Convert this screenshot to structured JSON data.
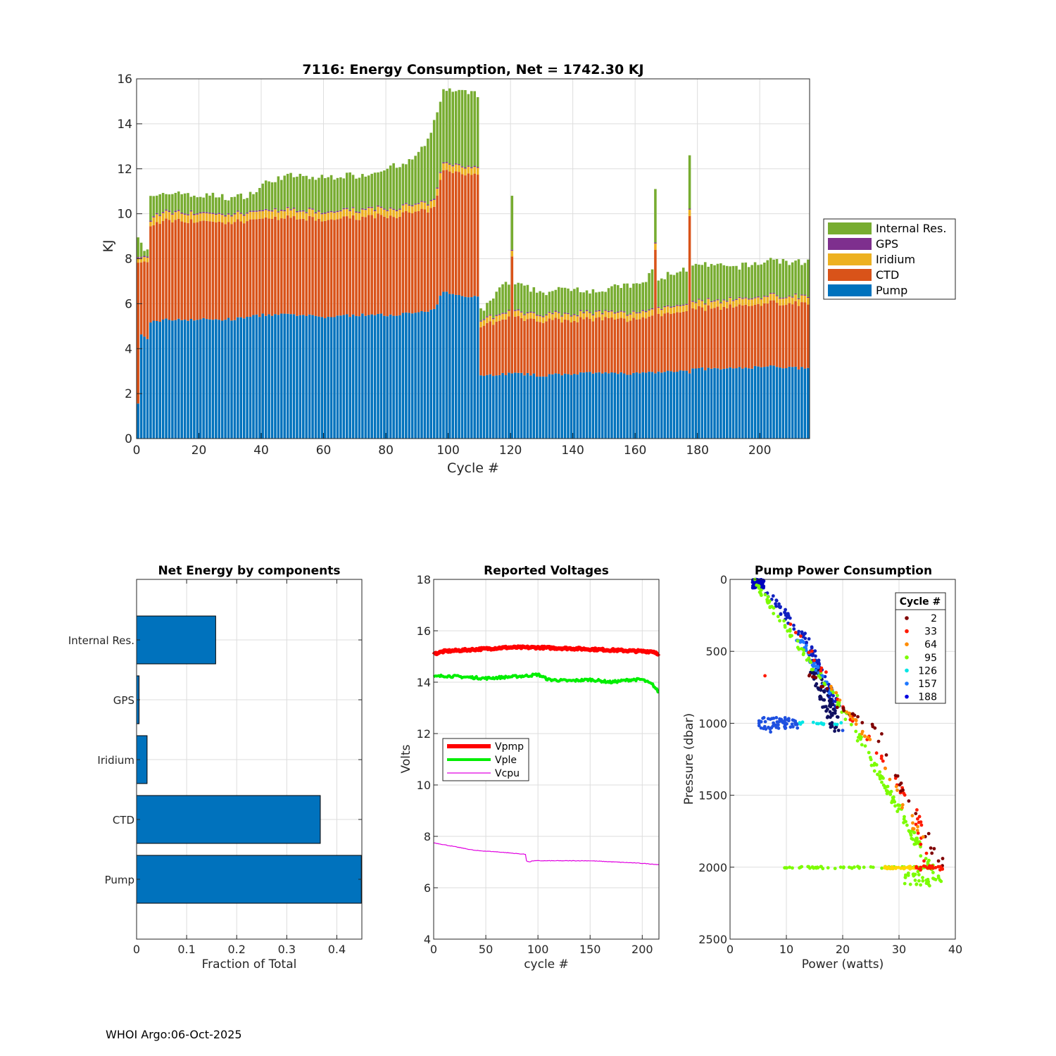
{
  "colors": {
    "pump": "#0072BD",
    "ctd": "#D95319",
    "iridium": "#EDB120",
    "gps": "#7E2F8E",
    "internal": "#77AC30",
    "vpmp": "#FF0000",
    "vple": "#00EE00",
    "vcpu": "#E000E0",
    "grid": "#DDDDDD"
  },
  "footer": "WHOI Argo:06-Oct-2025",
  "chart_data": [
    {
      "id": "energy",
      "type": "bar",
      "stacked": true,
      "title": "7116: Energy Consumption,  Net = 1742.30 KJ",
      "xlabel": "Cycle #",
      "ylabel": "KJ",
      "xlim": [
        0,
        216
      ],
      "ylim": [
        0,
        16
      ],
      "xticks": [
        0,
        20,
        40,
        60,
        80,
        100,
        120,
        140,
        160,
        180,
        200
      ],
      "yticks": [
        0,
        2,
        4,
        6,
        8,
        10,
        12,
        14,
        16
      ],
      "legend": [
        "Internal Res.",
        "GPS",
        "Iridium",
        "CTD",
        "Pump"
      ],
      "legend_position": "outside-right",
      "n_cycles": 216,
      "totals_keypoints": [
        [
          0,
          9.1
        ],
        [
          1,
          8.8
        ],
        [
          2,
          8.4
        ],
        [
          3,
          8.4
        ],
        [
          4,
          10.7
        ],
        [
          8,
          10.8
        ],
        [
          10,
          10.9
        ],
        [
          14,
          11.0
        ],
        [
          16,
          10.8
        ],
        [
          25,
          10.8
        ],
        [
          30,
          10.7
        ],
        [
          34,
          10.8
        ],
        [
          38,
          11.0
        ],
        [
          40,
          11.3
        ],
        [
          45,
          11.6
        ],
        [
          50,
          11.7
        ],
        [
          55,
          11.6
        ],
        [
          60,
          11.6
        ],
        [
          65,
          11.7
        ],
        [
          70,
          11.7
        ],
        [
          75,
          11.8
        ],
        [
          80,
          12.1
        ],
        [
          85,
          12.1
        ],
        [
          90,
          12.7
        ],
        [
          93,
          13.2
        ],
        [
          95,
          14.1
        ],
        [
          97,
          15.1
        ],
        [
          98,
          15.5
        ],
        [
          109,
          15.3
        ],
        [
          110,
          5.7
        ],
        [
          112,
          5.9
        ],
        [
          114,
          6.2
        ],
        [
          116,
          6.8
        ],
        [
          120,
          6.9
        ],
        [
          125,
          6.7
        ],
        [
          130,
          6.5
        ],
        [
          135,
          6.6
        ],
        [
          140,
          6.7
        ],
        [
          145,
          6.6
        ],
        [
          150,
          6.6
        ],
        [
          155,
          6.8
        ],
        [
          160,
          6.8
        ],
        [
          163,
          7.0
        ],
        [
          165,
          7.6
        ],
        [
          167,
          7.0
        ],
        [
          170,
          7.3
        ],
        [
          175,
          7.5
        ],
        [
          180,
          7.7
        ],
        [
          185,
          7.7
        ],
        [
          190,
          7.6
        ],
        [
          195,
          7.7
        ],
        [
          200,
          7.8
        ],
        [
          203,
          8.0
        ],
        [
          210,
          7.8
        ],
        [
          215,
          7.9
        ]
      ],
      "pump_keypoints": [
        [
          0,
          1.5
        ],
        [
          1,
          4.6
        ],
        [
          2,
          4.5
        ],
        [
          3,
          4.4
        ],
        [
          4,
          5.2
        ],
        [
          10,
          5.3
        ],
        [
          20,
          5.3
        ],
        [
          30,
          5.3
        ],
        [
          40,
          5.5
        ],
        [
          50,
          5.5
        ],
        [
          60,
          5.4
        ],
        [
          70,
          5.5
        ],
        [
          80,
          5.5
        ],
        [
          90,
          5.6
        ],
        [
          95,
          5.7
        ],
        [
          97,
          6.3
        ],
        [
          98,
          6.5
        ],
        [
          109,
          6.3
        ],
        [
          110,
          2.8
        ],
        [
          120,
          2.9
        ],
        [
          130,
          2.8
        ],
        [
          140,
          2.9
        ],
        [
          150,
          2.9
        ],
        [
          160,
          2.9
        ],
        [
          170,
          3.0
        ],
        [
          180,
          3.1
        ],
        [
          190,
          3.1
        ],
        [
          200,
          3.2
        ],
        [
          205,
          3.2
        ],
        [
          215,
          3.1
        ]
      ],
      "ctd_keypoints": [
        [
          0,
          6.3
        ],
        [
          1,
          3.2
        ],
        [
          3,
          3.4
        ],
        [
          4,
          4.3
        ],
        [
          10,
          4.4
        ],
        [
          30,
          4.3
        ],
        [
          40,
          4.3
        ],
        [
          60,
          4.3
        ],
        [
          80,
          4.4
        ],
        [
          95,
          4.5
        ],
        [
          98,
          5.4
        ],
        [
          109,
          5.5
        ],
        [
          110,
          2.1
        ],
        [
          112,
          2.3
        ],
        [
          120,
          2.5
        ],
        [
          140,
          2.4
        ],
        [
          160,
          2.4
        ],
        [
          170,
          2.6
        ],
        [
          180,
          2.7
        ],
        [
          200,
          2.8
        ],
        [
          215,
          2.9
        ]
      ],
      "iridium_keypoints": [
        [
          0,
          0.2
        ],
        [
          4,
          0.2
        ],
        [
          5,
          0.35
        ],
        [
          109,
          0.3
        ],
        [
          110,
          0.25
        ],
        [
          215,
          0.3
        ]
      ],
      "gps_keypoints": [
        [
          0,
          0.05
        ],
        [
          215,
          0.04
        ]
      ],
      "pump_overrides": [
        [
          120,
          5.9
        ],
        [
          166,
          5.8
        ],
        [
          177,
          6.3
        ]
      ],
      "spike_totals": [
        [
          120,
          10.8
        ],
        [
          166,
          11.1
        ],
        [
          177,
          12.6
        ]
      ]
    },
    {
      "id": "components",
      "type": "bar",
      "orientation": "horizontal",
      "title": "Net Energy by components",
      "xlabel": "Fraction of Total",
      "ylabel": "",
      "xlim": [
        0,
        0.45
      ],
      "xticks": [
        0,
        0.1,
        0.2,
        0.3,
        0.4
      ],
      "xtick_labels": [
        "0",
        "0.1",
        "0.2",
        "0.3",
        "0.4"
      ],
      "categories": [
        "Internal Res.",
        "GPS",
        "Iridium",
        "CTD",
        "Pump"
      ],
      "values": [
        0.158,
        0.005,
        0.021,
        0.367,
        0.449
      ]
    },
    {
      "id": "voltages",
      "type": "line",
      "title": "Reported Voltages",
      "xlabel": "cycle #",
      "ylabel": "Volts",
      "xlim": [
        0,
        216
      ],
      "ylim": [
        4,
        18
      ],
      "xticks": [
        0,
        50,
        100,
        150,
        200
      ],
      "yticks": [
        4,
        6,
        8,
        10,
        12,
        14,
        16,
        18
      ],
      "legend_position": "middle-left",
      "series": [
        {
          "name": "Vpmp",
          "keypoints": [
            [
              0,
              15.1
            ],
            [
              10,
              15.2
            ],
            [
              30,
              15.25
            ],
            [
              50,
              15.3
            ],
            [
              70,
              15.35
            ],
            [
              100,
              15.35
            ],
            [
              140,
              15.3
            ],
            [
              170,
              15.25
            ],
            [
              200,
              15.2
            ],
            [
              210,
              15.2
            ],
            [
              216,
              15.1
            ]
          ]
        },
        {
          "name": "Vple",
          "keypoints": [
            [
              0,
              14.2
            ],
            [
              10,
              14.25
            ],
            [
              30,
              14.2
            ],
            [
              50,
              14.15
            ],
            [
              70,
              14.2
            ],
            [
              90,
              14.25
            ],
            [
              100,
              14.3
            ],
            [
              110,
              14.1
            ],
            [
              130,
              14.05
            ],
            [
              150,
              14.1
            ],
            [
              170,
              14.0
            ],
            [
              190,
              14.1
            ],
            [
              200,
              14.1
            ],
            [
              205,
              14.0
            ],
            [
              210,
              13.9
            ],
            [
              216,
              13.6
            ]
          ]
        },
        {
          "name": "Vcpu",
          "keypoints": [
            [
              0,
              7.75
            ],
            [
              20,
              7.6
            ],
            [
              40,
              7.45
            ],
            [
              60,
              7.4
            ],
            [
              88,
              7.3
            ],
            [
              89,
              7.05
            ],
            [
              92,
              7.0
            ],
            [
              95,
              7.05
            ],
            [
              150,
              7.05
            ],
            [
              200,
              6.95
            ],
            [
              216,
              6.9
            ]
          ]
        }
      ]
    },
    {
      "id": "pump_power",
      "type": "scatter",
      "title": "Pump Power Consumption",
      "xlabel": "Power (watts)",
      "ylabel": "Pressure (dbar)",
      "xlim": [
        0,
        40
      ],
      "ylim": [
        0,
        2500
      ],
      "y_reversed": true,
      "xticks": [
        0,
        10,
        20,
        30,
        40
      ],
      "yticks": [
        0,
        500,
        1000,
        1500,
        2000,
        2500
      ],
      "legend_title": "Cycle #",
      "legend_position": "top-right",
      "legend": [
        {
          "label": "2",
          "color": "#800000"
        },
        {
          "label": "33",
          "color": "#FF1A00"
        },
        {
          "label": "64",
          "color": "#FF8C00"
        },
        {
          "label": "95",
          "color": "#7CFC00"
        },
        {
          "label": "126",
          "color": "#00E5E5"
        },
        {
          "label": "157",
          "color": "#1E78FF"
        },
        {
          "label": "188",
          "color": "#0000E0"
        }
      ],
      "clusters": [
        {
          "color": "#0000C0",
          "n": 90,
          "x": [
            4,
            6
          ],
          "y": [
            0,
            60
          ]
        },
        {
          "color": "#1020C0",
          "n": 110,
          "line": [
            [
              6,
              60
            ],
            [
              14,
              450
            ],
            [
              19,
              900
            ]
          ],
          "spread": 0.7
        },
        {
          "color": "#101060",
          "n": 70,
          "line": [
            [
              15,
              620
            ],
            [
              19,
              1050
            ]
          ],
          "spread": 1.0
        },
        {
          "color": "#1E78FF",
          "n": 40,
          "line": [
            [
              12,
              400
            ],
            [
              18,
              800
            ]
          ],
          "spread": 0.6
        },
        {
          "color": "#7CFC00",
          "n": 160,
          "line": [
            [
              4,
              0
            ],
            [
              20,
              900
            ],
            [
              30,
              1600
            ],
            [
              37,
              2100
            ]
          ],
          "spread": 0.5
        },
        {
          "color": "#FF1A00",
          "n": 40,
          "line": [
            [
              8,
              120
            ],
            [
              21,
              920
            ],
            [
              33,
              1600
            ],
            [
              35,
              2000
            ]
          ],
          "spread": 0.5
        },
        {
          "color": "#800000",
          "n": 40,
          "line": [
            [
              14,
              650
            ],
            [
              20,
              900
            ],
            [
              26,
              1050
            ],
            [
              31,
              1500
            ],
            [
              38,
              2000
            ]
          ],
          "spread": 0.6
        },
        {
          "color": "#FF8C00",
          "n": 30,
          "line": [
            [
              18,
              750
            ],
            [
              25,
              1150
            ],
            [
              34,
              1800
            ]
          ],
          "spread": 0.5
        },
        {
          "color": "#1E50E0",
          "n": 60,
          "x": [
            5,
            12
          ],
          "y": [
            960,
            1040
          ]
        },
        {
          "color": "#00E5E5",
          "n": 14,
          "x": [
            12,
            20
          ],
          "y": [
            990,
            1010
          ]
        },
        {
          "color": "#7CFC00",
          "n": 60,
          "x": [
            9,
            36
          ],
          "y": [
            1995,
            2010
          ]
        },
        {
          "color": "#FFD700",
          "n": 30,
          "x": [
            27,
            33
          ],
          "y": [
            1995,
            2012
          ]
        },
        {
          "color": "#FF1A00",
          "n": 20,
          "x": [
            33,
            38
          ],
          "y": [
            1990,
            2020
          ]
        },
        {
          "color": "#7CFC00",
          "n": 30,
          "x": [
            31,
            37.5
          ],
          "y": [
            2030,
            2130
          ]
        }
      ],
      "isolated_points": [
        {
          "x": 6.2,
          "y": 670,
          "color": "#FF1A00"
        },
        {
          "x": 7.2,
          "y": 1060,
          "color": "#1E50E0"
        },
        {
          "x": 20.0,
          "y": 1050,
          "color": "#1E50E0"
        }
      ]
    }
  ]
}
